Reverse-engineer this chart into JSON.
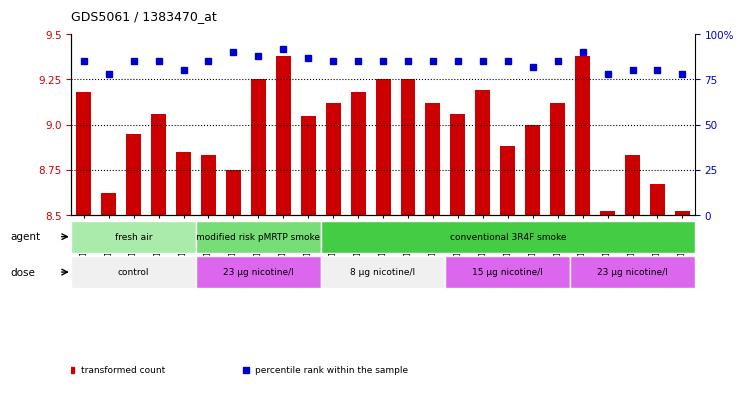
{
  "title": "GDS5061 / 1383470_at",
  "samples": [
    "GSM1217156",
    "GSM1217157",
    "GSM1217158",
    "GSM1217159",
    "GSM1217160",
    "GSM1217161",
    "GSM1217162",
    "GSM1217163",
    "GSM1217164",
    "GSM1217165",
    "GSM1217171",
    "GSM1217172",
    "GSM1217173",
    "GSM1217174",
    "GSM1217175",
    "GSM1217166",
    "GSM1217167",
    "GSM1217168",
    "GSM1217169",
    "GSM1217170",
    "GSM1217176",
    "GSM1217177",
    "GSM1217178",
    "GSM1217179",
    "GSM1217180"
  ],
  "bar_values": [
    9.18,
    8.62,
    8.95,
    9.06,
    8.85,
    8.83,
    8.75,
    9.25,
    9.38,
    9.05,
    9.12,
    9.18,
    9.25,
    9.25,
    9.12,
    9.06,
    9.19,
    8.88,
    9.0,
    9.12,
    9.38,
    8.52,
    8.83,
    8.67,
    8.52
  ],
  "percentile_values": [
    85,
    78,
    85,
    85,
    80,
    85,
    90,
    88,
    92,
    87,
    85,
    85,
    85,
    85,
    85,
    85,
    85,
    85,
    82,
    85,
    90,
    78,
    80,
    80,
    78
  ],
  "bar_color": "#cc0000",
  "percentile_color": "#0000cc",
  "bar_bottom": 8.5,
  "ylim_left": [
    8.5,
    9.5
  ],
  "ylim_right": [
    0,
    100
  ],
  "yticks_left": [
    8.5,
    8.75,
    9.0,
    9.25,
    9.5
  ],
  "yticks_right": [
    0,
    25,
    50,
    75,
    100
  ],
  "ytick_labels_right": [
    "0",
    "25",
    "50",
    "75",
    "100%"
  ],
  "hlines": [
    8.75,
    9.0,
    9.25
  ],
  "agent_groups": [
    {
      "label": "fresh air",
      "start": 0,
      "end": 5,
      "color": "#aaeaaa"
    },
    {
      "label": "modified risk pMRTP smoke",
      "start": 5,
      "end": 10,
      "color": "#77dd77"
    },
    {
      "label": "conventional 3R4F smoke",
      "start": 10,
      "end": 25,
      "color": "#44cc44"
    }
  ],
  "dose_groups": [
    {
      "label": "control",
      "start": 0,
      "end": 5,
      "color": "#f0f0f0"
    },
    {
      "label": "23 µg nicotine/l",
      "start": 5,
      "end": 10,
      "color": "#dd66ee"
    },
    {
      "label": "8 µg nicotine/l",
      "start": 10,
      "end": 15,
      "color": "#f0f0f0"
    },
    {
      "label": "15 µg nicotine/l",
      "start": 15,
      "end": 20,
      "color": "#dd66ee"
    },
    {
      "label": "23 µg nicotine/l",
      "start": 20,
      "end": 25,
      "color": "#dd66ee"
    }
  ],
  "legend_items": [
    {
      "label": "transformed count",
      "color": "#cc0000",
      "marker": "s"
    },
    {
      "label": "percentile rank within the sample",
      "color": "#0000cc",
      "marker": "s"
    }
  ],
  "agent_label": "agent",
  "dose_label": "dose"
}
